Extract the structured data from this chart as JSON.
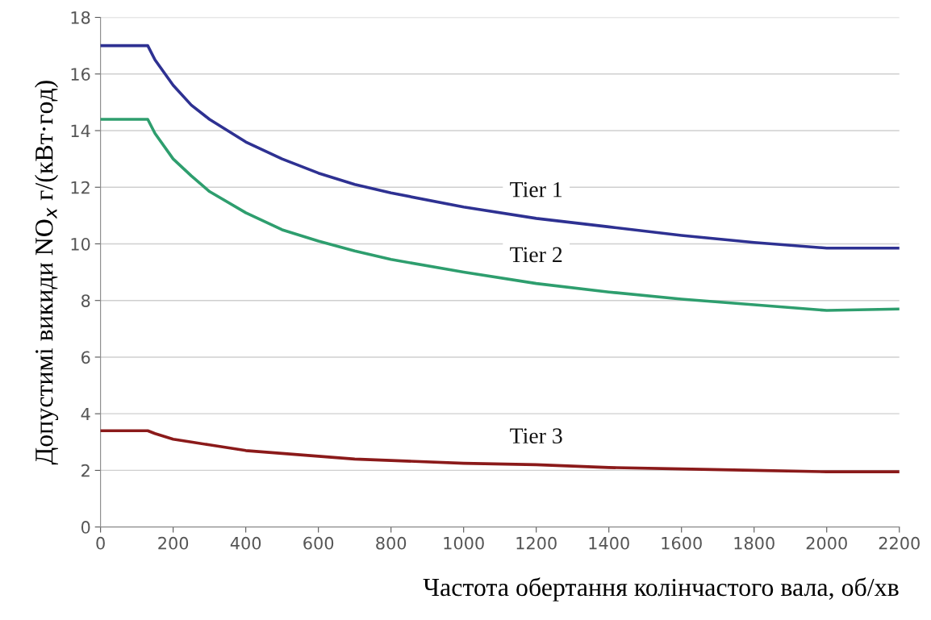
{
  "chart_data": {
    "type": "line",
    "xlabel": "Частота обертання колінчастого вала, об/хв",
    "ylabel": "Допустимі викиди NO$_{x}$ г/(кВт·год)",
    "x": [
      0,
      130,
      150,
      200,
      250,
      300,
      400,
      500,
      600,
      700,
      800,
      1000,
      1200,
      1400,
      1600,
      1800,
      2000,
      2200
    ],
    "series": [
      {
        "name": "Tier 1",
        "color": "#2e3192",
        "values": [
          17.0,
          17.0,
          16.5,
          15.6,
          14.9,
          14.4,
          13.6,
          13.0,
          12.5,
          12.1,
          11.8,
          11.3,
          10.9,
          10.6,
          10.3,
          10.05,
          9.85,
          9.85
        ]
      },
      {
        "name": "Tier 2",
        "color": "#2e9e6e",
        "values": [
          14.4,
          14.4,
          13.9,
          13.0,
          12.4,
          11.85,
          11.1,
          10.5,
          10.1,
          9.75,
          9.45,
          9.0,
          8.6,
          8.3,
          8.05,
          7.85,
          7.65,
          7.7
        ]
      },
      {
        "name": "Tier 3",
        "color": "#8b1a1a",
        "values": [
          3.4,
          3.4,
          3.3,
          3.1,
          3.0,
          2.9,
          2.7,
          2.6,
          2.5,
          2.4,
          2.35,
          2.25,
          2.2,
          2.1,
          2.05,
          2.0,
          1.95,
          1.95
        ]
      }
    ],
    "xlim": [
      0,
      2200
    ],
    "xticks": [
      0,
      200,
      400,
      600,
      800,
      1000,
      1200,
      1400,
      1600,
      1800,
      2000,
      2200
    ],
    "ylim": [
      0,
      18
    ],
    "yticks": [
      0,
      2,
      4,
      6,
      8,
      10,
      12,
      14,
      16,
      18
    ],
    "grid": "y",
    "legend": false,
    "marker": "none",
    "line_style": "solid"
  }
}
